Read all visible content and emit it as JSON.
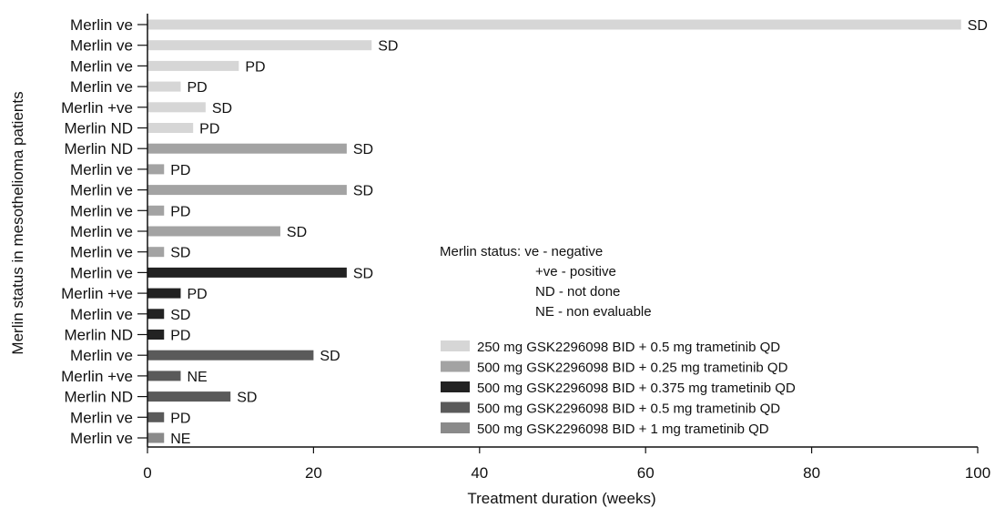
{
  "chart_data": {
    "type": "bar",
    "orientation": "horizontal",
    "xlabel": "Treatment duration (weeks)",
    "ylabel": "Merlin status in mesothelioma patients",
    "xlim": [
      0,
      100
    ],
    "xticks": [
      0,
      20,
      40,
      60,
      80,
      100
    ],
    "grid": false,
    "legend_position": "right",
    "colors": {
      "light": "#d6d6d6",
      "mid": "#a3a3a3",
      "black": "#222222",
      "dark": "#5a5a5a",
      "gray": "#8a8a8a"
    },
    "legend": [
      {
        "label": "250 mg GSK2296098 BID + 0.5 mg trametinib QD",
        "color_key": "light"
      },
      {
        "label": "500 mg GSK2296098 BID + 0.25 mg trametinib QD",
        "color_key": "mid"
      },
      {
        "label": "500 mg GSK2296098 BID + 0.375 mg trametinib QD",
        "color_key": "black"
      },
      {
        "label": "500 mg GSK2296098 BID + 0.5 mg trametinib QD",
        "color_key": "dark"
      },
      {
        "label": "500 mg GSK2296098 BID + 1 mg trametinib QD",
        "color_key": "gray"
      }
    ],
    "annotation": {
      "title": "Merlin status: ve - negative",
      "lines": [
        "+ve - positive",
        "ND - not done",
        "NE - non evaluable"
      ]
    },
    "bars": [
      {
        "category": "Merlin ve",
        "value": 98,
        "response": "SD",
        "series": 0
      },
      {
        "category": "Merlin ve",
        "value": 27,
        "response": "SD",
        "series": 0
      },
      {
        "category": "Merlin ve",
        "value": 11,
        "response": "PD",
        "series": 0
      },
      {
        "category": "Merlin ve",
        "value": 4,
        "response": "PD",
        "series": 0
      },
      {
        "category": "Merlin +ve",
        "value": 7,
        "response": "SD",
        "series": 0
      },
      {
        "category": "Merlin ND",
        "value": 5.5,
        "response": "PD",
        "series": 0
      },
      {
        "category": "Merlin ND",
        "value": 24,
        "response": "SD",
        "series": 1
      },
      {
        "category": "Merlin ve",
        "value": 2,
        "response": "PD",
        "series": 1
      },
      {
        "category": "Merlin ve",
        "value": 24,
        "response": "SD",
        "series": 1
      },
      {
        "category": "Merlin ve",
        "value": 2,
        "response": "PD",
        "series": 1
      },
      {
        "category": "Merlin ve",
        "value": 16,
        "response": "SD",
        "series": 1
      },
      {
        "category": "Merlin ve",
        "value": 2,
        "response": "SD",
        "series": 1
      },
      {
        "category": "Merlin ve",
        "value": 24,
        "response": "SD",
        "series": 2
      },
      {
        "category": "Merlin +ve",
        "value": 4,
        "response": "PD",
        "series": 2
      },
      {
        "category": "Merlin ve",
        "value": 2,
        "response": "SD",
        "series": 2
      },
      {
        "category": "Merlin ND",
        "value": 2,
        "response": "PD",
        "series": 2
      },
      {
        "category": "Merlin ve",
        "value": 20,
        "response": "SD",
        "series": 3
      },
      {
        "category": "Merlin +ve",
        "value": 4,
        "response": "NE",
        "series": 3
      },
      {
        "category": "Merlin ND",
        "value": 10,
        "response": "SD",
        "series": 3
      },
      {
        "category": "Merlin ve",
        "value": 2,
        "response": "PD",
        "series": 3
      },
      {
        "category": "Merlin ve",
        "value": 2,
        "response": "NE",
        "series": 4
      }
    ]
  }
}
